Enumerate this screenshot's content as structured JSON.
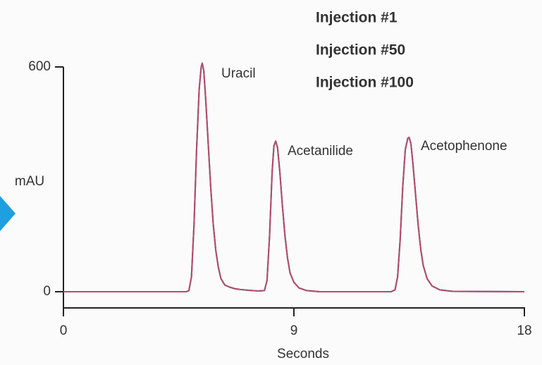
{
  "chart_data": {
    "type": "line",
    "xlabel": "Seconds",
    "ylabel": "mAU",
    "annotations": [
      "Uracil",
      "Acetanilide",
      "Acetophenone"
    ],
    "x": [
      0,
      4.8,
      4.9,
      5.0,
      5.1,
      5.2,
      5.3,
      5.38,
      5.42,
      5.48,
      5.55,
      5.65,
      5.75,
      5.85,
      5.95,
      6.05,
      6.15,
      6.3,
      6.5,
      6.7,
      6.9,
      7.2,
      7.6,
      7.85,
      7.95,
      8.05,
      8.15,
      8.22,
      8.29,
      8.36,
      8.45,
      8.55,
      8.65,
      8.75,
      8.85,
      9.0,
      9.2,
      9.5,
      10,
      12.8,
      12.95,
      13.05,
      13.15,
      13.25,
      13.35,
      13.45,
      13.5,
      13.57,
      13.65,
      13.75,
      13.85,
      13.95,
      14.05,
      14.2,
      14.4,
      14.7,
      15.2,
      18
    ],
    "series": [
      {
        "name": "Injection #1",
        "color": "#3d3a8c",
        "values": [
          0,
          0,
          3,
          40,
          180,
          380,
          540,
          600,
          610,
          590,
          520,
          400,
          280,
          180,
          110,
          65,
          35,
          18,
          12,
          8,
          6,
          4,
          2,
          3,
          30,
          150,
          320,
          390,
          402,
          385,
          320,
          230,
          150,
          90,
          50,
          25,
          10,
          3,
          0,
          0,
          5,
          40,
          140,
          280,
          380,
          410,
          412,
          395,
          340,
          260,
          180,
          115,
          70,
          35,
          15,
          5,
          1,
          0
        ]
      },
      {
        "name": "Injection #50",
        "color": "#3ab4e6",
        "values": [
          0,
          0,
          3,
          40,
          180,
          380,
          540,
          600,
          610,
          590,
          520,
          400,
          280,
          180,
          110,
          65,
          35,
          18,
          12,
          8,
          6,
          4,
          2,
          3,
          30,
          150,
          320,
          390,
          402,
          385,
          320,
          230,
          150,
          90,
          50,
          25,
          10,
          3,
          0,
          0,
          5,
          40,
          140,
          280,
          380,
          410,
          412,
          395,
          340,
          260,
          180,
          115,
          70,
          35,
          15,
          5,
          1,
          0
        ]
      },
      {
        "name": "Injection #100",
        "color": "#e0283c",
        "values": [
          0,
          0,
          3,
          40,
          180,
          380,
          540,
          600,
          610,
          590,
          520,
          400,
          280,
          180,
          110,
          65,
          35,
          18,
          12,
          8,
          6,
          4,
          2,
          3,
          30,
          150,
          320,
          390,
          402,
          385,
          320,
          230,
          150,
          90,
          50,
          25,
          10,
          3,
          0,
          0,
          5,
          40,
          140,
          280,
          380,
          410,
          412,
          395,
          340,
          260,
          180,
          115,
          70,
          35,
          15,
          5,
          1,
          0
        ]
      }
    ],
    "xlim": [
      0,
      18
    ],
    "xticks": [
      0,
      9,
      18
    ],
    "ylim": [
      0,
      600
    ],
    "yticks": [
      0,
      600
    ]
  }
}
